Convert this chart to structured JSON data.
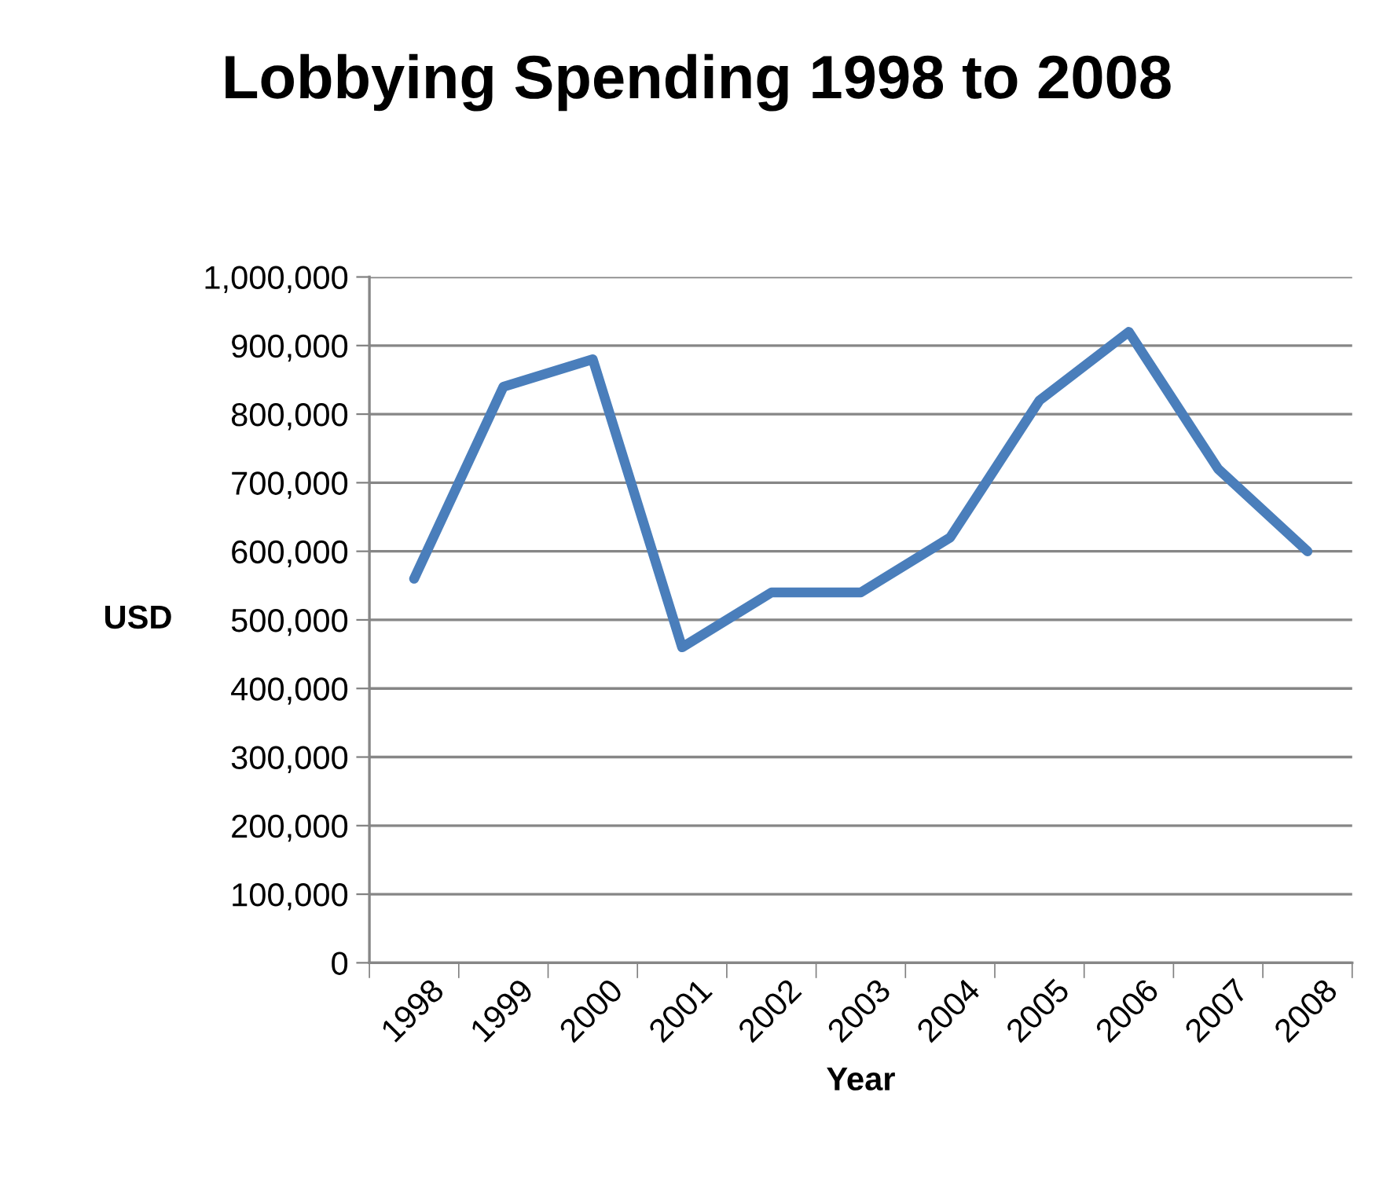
{
  "chart_data": {
    "type": "line",
    "title": "Lobbying Spending 1998 to 2008",
    "xlabel": "Year",
    "ylabel": "USD",
    "categories": [
      "1998",
      "1999",
      "2000",
      "2001",
      "2002",
      "2003",
      "2004",
      "2005",
      "2006",
      "2007",
      "2008"
    ],
    "series": [
      {
        "color": "#4a7ebb",
        "values": [
          560000,
          840000,
          880000,
          460000,
          540000,
          540000,
          620000,
          820000,
          920000,
          720000,
          600000
        ]
      }
    ],
    "ylim": [
      0,
      1000000
    ],
    "yticks": [
      {
        "value": 0,
        "label": "0"
      },
      {
        "value": 100000,
        "label": "100,000"
      },
      {
        "value": 200000,
        "label": "200,000"
      },
      {
        "value": 300000,
        "label": "300,000"
      },
      {
        "value": 400000,
        "label": "400,000"
      },
      {
        "value": 500000,
        "label": "500,000"
      },
      {
        "value": 600000,
        "label": "600,000"
      },
      {
        "value": 700000,
        "label": "700,000"
      },
      {
        "value": 800000,
        "label": "800,000"
      },
      {
        "value": 900000,
        "label": "900,000"
      },
      {
        "value": 1000000,
        "label": "1,000,000"
      }
    ],
    "grid": "y",
    "legend": false,
    "marker": "none",
    "line_style": "solid"
  }
}
